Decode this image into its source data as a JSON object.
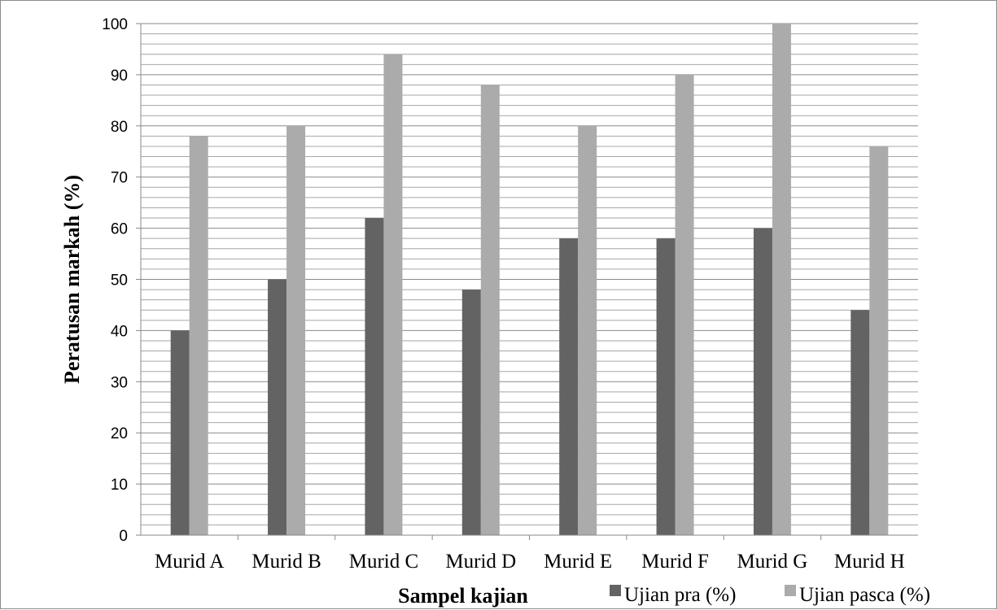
{
  "chart_data": {
    "type": "bar",
    "title": "",
    "xlabel": "Sampel kajian",
    "ylabel": "Peratusan markah (%)",
    "ylim": [
      0,
      100
    ],
    "y_ticks": [
      "0",
      "10",
      "20",
      "30",
      "40",
      "50",
      "60",
      "70",
      "80",
      "90",
      "100"
    ],
    "y_minor_step": 2,
    "grid": true,
    "legend_position": "bottom-right",
    "categories": [
      "Murid A",
      "Murid B",
      "Murid C",
      "Murid D",
      "Murid E",
      "Murid F",
      "Murid G",
      "Murid H"
    ],
    "series": [
      {
        "name": "Ujian pra (%)",
        "color": "#636363",
        "values": [
          40,
          50,
          62,
          48,
          58,
          58,
          60,
          44
        ]
      },
      {
        "name": "Ujian pasca (%)",
        "color": "#ababab",
        "values": [
          78,
          80,
          94,
          88,
          80,
          90,
          100,
          76
        ]
      }
    ]
  }
}
